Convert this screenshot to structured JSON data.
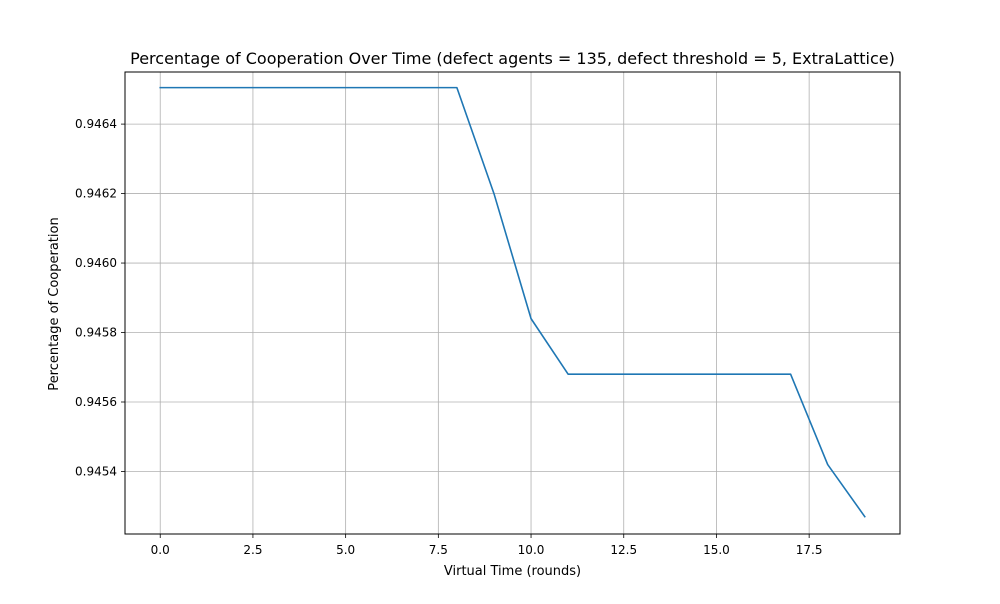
{
  "chart_data": {
    "type": "line",
    "title": "Percentage of Cooperation Over Time (defect agents = 135, defect threshold = 5, ExtraLattice)",
    "xlabel": "Virtual Time (rounds)",
    "ylabel": "Percentage of Cooperation",
    "xlim": [
      -0.95,
      19.95
    ],
    "ylim": [
      0.94522,
      0.94655
    ],
    "xticks": [
      0.0,
      2.5,
      5.0,
      7.5,
      10.0,
      12.5,
      15.0,
      17.5
    ],
    "xtick_labels": [
      "0.0",
      "2.5",
      "5.0",
      "7.5",
      "10.0",
      "12.5",
      "15.0",
      "17.5"
    ],
    "yticks": [
      0.9454,
      0.9456,
      0.9458,
      0.946,
      0.9462,
      0.9464
    ],
    "ytick_labels": [
      "0.9454",
      "0.9456",
      "0.9458",
      "0.9460",
      "0.9462",
      "0.9464"
    ],
    "grid": true,
    "series": [
      {
        "color": "#1f77b4",
        "x": [
          0,
          1,
          2,
          3,
          4,
          5,
          6,
          7,
          8,
          9,
          10,
          11,
          12,
          13,
          14,
          15,
          16,
          17,
          18,
          19
        ],
        "y": [
          0.946505,
          0.946505,
          0.946505,
          0.946505,
          0.946505,
          0.946505,
          0.946505,
          0.946505,
          0.946505,
          0.9462,
          0.94584,
          0.94568,
          0.94568,
          0.94568,
          0.94568,
          0.94568,
          0.94568,
          0.94568,
          0.94542,
          0.94527
        ]
      }
    ]
  }
}
